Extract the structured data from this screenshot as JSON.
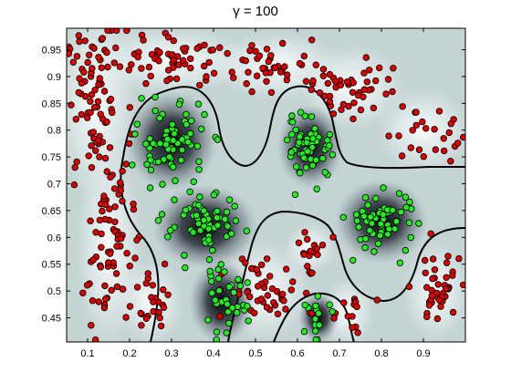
{
  "chart_data": {
    "type": "scatter",
    "title": "γ =  100",
    "xlabel": "",
    "ylabel": "",
    "xlim": [
      0.05,
      1.0
    ],
    "ylim": [
      0.405,
      0.99
    ],
    "grid": false,
    "x_ticks": [
      "0.1",
      "0.2",
      "0.3",
      "0.4",
      "0.5",
      "0.6",
      "0.7",
      "0.8",
      "0.9"
    ],
    "y_ticks": [
      "0.45",
      "0.5",
      "0.55",
      "0.6",
      "0.65",
      "0.7",
      "0.75",
      "0.8",
      "0.85",
      "0.9",
      "0.95"
    ],
    "background": "SVM decision function (dark = green class, light = red class) with black decision boundary",
    "series": [
      {
        "color": "#e00000",
        "clusters": [
          {
            "center": [
              0.12,
              0.85
            ],
            "spread": [
              0.06,
              0.12
            ],
            "count": 80
          },
          {
            "center": [
              0.3,
              0.93
            ],
            "spread": [
              0.12,
              0.04
            ],
            "count": 60
          },
          {
            "center": [
              0.55,
              0.92
            ],
            "spread": [
              0.1,
              0.04
            ],
            "count": 40
          },
          {
            "center": [
              0.73,
              0.88
            ],
            "spread": [
              0.08,
              0.05
            ],
            "count": 45
          },
          {
            "center": [
              0.9,
              0.8
            ],
            "spread": [
              0.07,
              0.05
            ],
            "count": 25
          },
          {
            "center": [
              0.15,
              0.58
            ],
            "spread": [
              0.05,
              0.12
            ],
            "count": 70
          },
          {
            "center": [
              0.25,
              0.48
            ],
            "spread": [
              0.05,
              0.05
            ],
            "count": 25
          },
          {
            "center": [
              0.52,
              0.5
            ],
            "spread": [
              0.07,
              0.06
            ],
            "count": 45
          },
          {
            "center": [
              0.63,
              0.58
            ],
            "spread": [
              0.04,
              0.03
            ],
            "count": 18
          },
          {
            "center": [
              0.72,
              0.46
            ],
            "spread": [
              0.04,
              0.04
            ],
            "count": 15
          },
          {
            "center": [
              0.93,
              0.5
            ],
            "spread": [
              0.05,
              0.06
            ],
            "count": 40
          }
        ]
      },
      {
        "color": "#22ee22",
        "clusters": [
          {
            "center": [
              0.3,
              0.78
            ],
            "spread": [
              0.07,
              0.06
            ],
            "count": 70
          },
          {
            "center": [
              0.63,
              0.77
            ],
            "spread": [
              0.05,
              0.05
            ],
            "count": 55
          },
          {
            "center": [
              0.38,
              0.62
            ],
            "spread": [
              0.08,
              0.05
            ],
            "count": 60
          },
          {
            "center": [
              0.42,
              0.48
            ],
            "spread": [
              0.05,
              0.05
            ],
            "count": 35
          },
          {
            "center": [
              0.8,
              0.63
            ],
            "spread": [
              0.07,
              0.05
            ],
            "count": 60
          },
          {
            "center": [
              0.65,
              0.45
            ],
            "spread": [
              0.03,
              0.03
            ],
            "count": 15
          }
        ]
      }
    ]
  }
}
